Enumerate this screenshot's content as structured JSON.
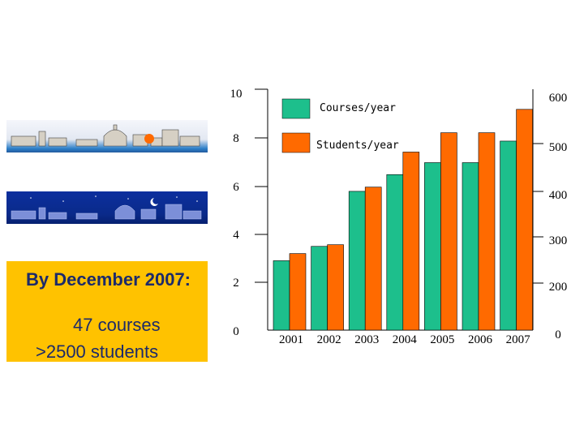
{
  "colors": {
    "courses": "#1dbf8c",
    "students": "#ff6a00",
    "info_box": "#ffc200",
    "info_text": "#1c2a6a"
  },
  "images": {
    "day_banner": "rome-skyline-day",
    "night_banner": "rome-skyline-night"
  },
  "info": {
    "heading": "By December 2007:",
    "line1": "47 courses",
    "line2": ">2500 students"
  },
  "chart_data": {
    "type": "bar",
    "categories": [
      "2001",
      "2002",
      "2003",
      "2004",
      "2005",
      "2006",
      "2007"
    ],
    "series": [
      {
        "name": "Courses/year",
        "axis": "left",
        "values": [
          2.9,
          3.5,
          5.8,
          6.5,
          7.0,
          7.0,
          7.9
        ]
      },
      {
        "name": "Students/year",
        "axis": "right",
        "values": [
          190,
          212,
          355,
          442,
          490,
          490,
          548
        ]
      }
    ],
    "left_axis": {
      "ticks": [
        "0",
        "2",
        "4",
        "6",
        "8",
        "10"
      ],
      "ylim": [
        0,
        10
      ]
    },
    "right_axis": {
      "ticks": [
        "0",
        "200",
        "300",
        "400",
        "500",
        "600"
      ],
      "ylim": [
        0,
        600
      ]
    },
    "legend_placement": "top-center",
    "grid": false
  }
}
